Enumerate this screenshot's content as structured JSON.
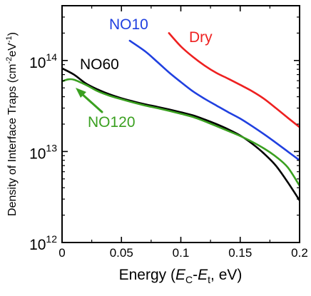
{
  "chart_data": {
    "type": "line",
    "title": "",
    "xlabel": {
      "prefix": "Energy (",
      "var1": "E",
      "sub1": "C",
      "dash": "-",
      "var2": "E",
      "sub2": "t",
      "suffix": ", eV)"
    },
    "ylabel": {
      "main": "Density of Interface Traps (cm",
      "sup1": "-2",
      "mid": "eV",
      "sup2": "-1",
      "close": ")"
    },
    "xlim": [
      0,
      0.2
    ],
    "ylim": [
      1000000000000.0,
      400000000000000.0
    ],
    "yscale": "log",
    "grid": false,
    "x_ticks": [
      {
        "value": 0,
        "label": "0"
      },
      {
        "value": 0.05,
        "label": "0.05"
      },
      {
        "value": 0.1,
        "label": "0.1"
      },
      {
        "value": 0.15,
        "label": "0.15"
      },
      {
        "value": 0.2,
        "label": "0.2"
      }
    ],
    "y_ticks": [
      {
        "value": 1000000000000.0,
        "base": "10",
        "exp": "12"
      },
      {
        "value": 10000000000000.0,
        "base": "10",
        "exp": "13"
      },
      {
        "value": 100000000000000.0,
        "base": "10",
        "exp": "14"
      }
    ],
    "series": [
      {
        "name": "Dry",
        "color": "#ee2020",
        "x": [
          0.09,
          0.1,
          0.11,
          0.12,
          0.13,
          0.14,
          0.15,
          0.16,
          0.17,
          0.18,
          0.19,
          0.2
        ],
        "y": [
          200000000000000.0,
          143000000000000.0,
          110000000000000.0,
          88000000000000.0,
          73000000000000.0,
          63000000000000.0,
          54000000000000.0,
          46000000000000.0,
          38000000000000.0,
          30000000000000.0,
          23500000000000.0,
          18500000000000.0
        ]
      },
      {
        "name": "NO10",
        "color": "#2040e0",
        "x": [
          0.057,
          0.07,
          0.08,
          0.09,
          0.1,
          0.11,
          0.12,
          0.13,
          0.14,
          0.15,
          0.16,
          0.17,
          0.18,
          0.19,
          0.2
        ],
        "y": [
          165000000000000.0,
          126000000000000.0,
          97000000000000.0,
          74000000000000.0,
          58000000000000.0,
          46000000000000.0,
          38000000000000.0,
          32000000000000.0,
          27000000000000.0,
          23000000000000.0,
          19000000000000.0,
          15500000000000.0,
          12500000000000.0,
          10000000000000.0,
          8000000000000.0
        ]
      },
      {
        "name": "NO60",
        "color": "#000000",
        "x": [
          0.0,
          0.01,
          0.02,
          0.03,
          0.04,
          0.05,
          0.06,
          0.07,
          0.08,
          0.09,
          0.1,
          0.11,
          0.12,
          0.13,
          0.14,
          0.15,
          0.16,
          0.17,
          0.18,
          0.19,
          0.2
        ],
        "y": [
          82000000000000.0,
          70000000000000.0,
          56000000000000.0,
          48000000000000.0,
          42500000000000.0,
          38500000000000.0,
          35500000000000.0,
          33000000000000.0,
          31000000000000.0,
          29000000000000.0,
          27000000000000.0,
          25000000000000.0,
          22500000000000.0,
          20000000000000.0,
          17500000000000.0,
          15000000000000.0,
          12200000000000.0,
          9500000000000.0,
          7000000000000.0,
          4600000000000.0,
          2900000000000.0
        ]
      },
      {
        "name": "NO120",
        "color": "#3aa020",
        "x": [
          0.0,
          0.005,
          0.01,
          0.02,
          0.03,
          0.04,
          0.05,
          0.06,
          0.07,
          0.08,
          0.09,
          0.1,
          0.11,
          0.12,
          0.13,
          0.14,
          0.15,
          0.16,
          0.17,
          0.18,
          0.19,
          0.2
        ],
        "y": [
          59000000000000.0,
          62000000000000.0,
          61500000000000.0,
          54000000000000.0,
          46000000000000.0,
          41000000000000.0,
          37500000000000.0,
          34500000000000.0,
          32000000000000.0,
          30000000000000.0,
          28000000000000.0,
          26000000000000.0,
          24000000000000.0,
          21500000000000.0,
          19000000000000.0,
          16800000000000.0,
          14800000000000.0,
          12800000000000.0,
          10800000000000.0,
          8800000000000.0,
          6700000000000.0,
          4200000000000.0
        ]
      }
    ],
    "annotations": [
      {
        "text": "Dry",
        "series": "Dry",
        "color": "#ee2020"
      },
      {
        "text": "NO10",
        "series": "NO10",
        "color": "#2040e0"
      },
      {
        "text": "NO60",
        "series": "NO60",
        "color": "#000000"
      },
      {
        "text": "NO120",
        "series": "NO120",
        "color": "#3aa020",
        "arrow": true
      }
    ]
  }
}
